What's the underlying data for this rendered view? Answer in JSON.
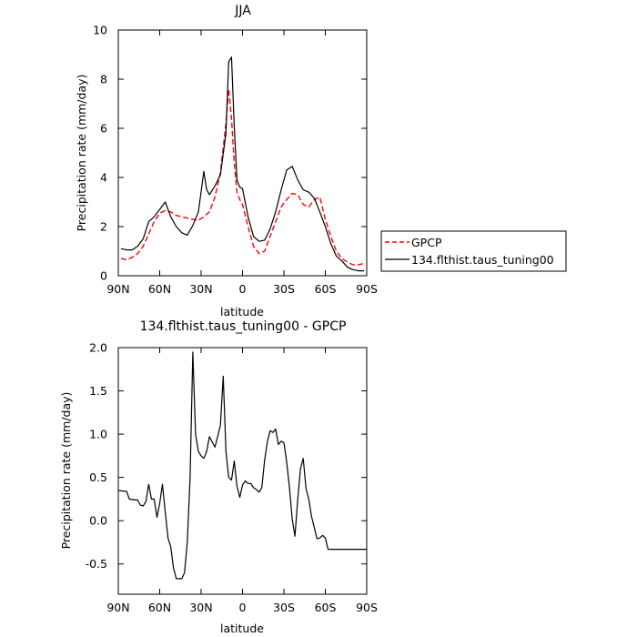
{
  "chart_data": [
    {
      "type": "line",
      "title": "JJA",
      "xlabel": "latitude",
      "ylabel": "Precipitation rate (mm/day)",
      "xlim": [
        -90,
        90
      ],
      "ylim": [
        0,
        10
      ],
      "xticks": [
        -90,
        -60,
        -30,
        0,
        30,
        60,
        90
      ],
      "xtick_labels": [
        "90N",
        "60N",
        "30N",
        "0",
        "30S",
        "60S",
        "90S"
      ],
      "yticks": [
        0,
        2,
        4,
        6,
        8,
        10
      ],
      "ytick_labels": [
        "0",
        "2",
        "4",
        "6",
        "8",
        "10"
      ],
      "legend_position": "right",
      "series": [
        {
          "name": "GPCP",
          "color": "#ff0000",
          "dash": "dashed",
          "x": [
            -88,
            -84,
            -80,
            -76,
            -72,
            -68,
            -64,
            -60,
            -56,
            -52,
            -48,
            -44,
            -40,
            -36,
            -32,
            -28,
            -24,
            -20,
            -16,
            -12,
            -10,
            -8,
            -6,
            -4,
            -2,
            0,
            4,
            8,
            12,
            16,
            20,
            24,
            28,
            32,
            36,
            40,
            44,
            48,
            52,
            56,
            60,
            64,
            68,
            72,
            76,
            80,
            84,
            88
          ],
          "y": [
            0.7,
            0.65,
            0.75,
            0.9,
            1.2,
            1.7,
            2.2,
            2.55,
            2.65,
            2.6,
            2.45,
            2.4,
            2.35,
            2.3,
            2.25,
            2.4,
            2.6,
            3.2,
            4.2,
            6.2,
            7.6,
            6.4,
            4.6,
            3.4,
            3.1,
            2.9,
            2.0,
            1.2,
            0.9,
            1.0,
            1.6,
            2.2,
            2.8,
            3.1,
            3.35,
            3.3,
            2.9,
            2.8,
            3.1,
            3.2,
            2.3,
            1.6,
            1.0,
            0.7,
            0.55,
            0.45,
            0.45,
            0.5
          ]
        },
        {
          "name": "134.flthist.taus_tuning00",
          "color": "#000000",
          "dash": "solid",
          "x": [
            -88,
            -84,
            -80,
            -76,
            -72,
            -68,
            -64,
            -60,
            -56,
            -52,
            -48,
            -44,
            -40,
            -36,
            -32,
            -28,
            -26,
            -24,
            -20,
            -16,
            -12,
            -10,
            -8,
            -6,
            -4,
            -2,
            0,
            4,
            8,
            12,
            16,
            20,
            24,
            28,
            32,
            36,
            40,
            44,
            48,
            52,
            56,
            60,
            64,
            68,
            72,
            76,
            80,
            84,
            88
          ],
          "y": [
            1.1,
            1.05,
            1.05,
            1.2,
            1.5,
            2.2,
            2.4,
            2.7,
            3.0,
            2.4,
            2.0,
            1.75,
            1.65,
            2.05,
            2.6,
            4.25,
            3.5,
            3.3,
            3.65,
            4.1,
            5.8,
            8.7,
            8.9,
            6.1,
            3.9,
            3.6,
            3.55,
            2.4,
            1.6,
            1.4,
            1.45,
            1.9,
            2.6,
            3.5,
            4.3,
            4.45,
            3.9,
            3.5,
            3.4,
            3.15,
            2.6,
            2.0,
            1.3,
            0.8,
            0.6,
            0.35,
            0.25,
            0.2,
            0.2
          ]
        }
      ]
    },
    {
      "type": "line",
      "title": "134.flthist.taus_tuning00 - GPCP",
      "xlabel": "latitude",
      "ylabel": "Precipitation rate (mm/day)",
      "xlim": [
        -90,
        90
      ],
      "ylim": [
        -0.85,
        2.0
      ],
      "xticks": [
        -90,
        -60,
        -30,
        0,
        30,
        60,
        90
      ],
      "xtick_labels": [
        "90N",
        "60N",
        "30N",
        "0",
        "30S",
        "60S",
        "90S"
      ],
      "yticks": [
        -0.5,
        0.0,
        0.5,
        1.0,
        1.5,
        2.0
      ],
      "ytick_labels": [
        "-0.5",
        "0.0",
        "0.5",
        "1.0",
        "1.5",
        "2.0"
      ],
      "series": [
        {
          "color": "#000000",
          "dash": "solid",
          "x": [
            -90,
            -86,
            -84,
            -82,
            -78,
            -76,
            -74,
            -72,
            -70,
            -68,
            -66,
            -64,
            -62,
            -60,
            -58,
            -56,
            -54,
            -52,
            -50,
            -48,
            -44,
            -42,
            -40,
            -38,
            -36,
            -34,
            -32,
            -30,
            -28,
            -26,
            -24,
            -20,
            -16,
            -14,
            -12,
            -10,
            -8,
            -6,
            -4,
            -2,
            0,
            2,
            4,
            6,
            8,
            10,
            12,
            14,
            16,
            18,
            20,
            22,
            24,
            26,
            28,
            30,
            32,
            34,
            36,
            38,
            40,
            42,
            44,
            46,
            48,
            50,
            52,
            54,
            56,
            58,
            60,
            62,
            64,
            66,
            68,
            70,
            72,
            74,
            76,
            78,
            80,
            82,
            84,
            86,
            88,
            90
          ],
          "y": [
            0.35,
            0.34,
            0.34,
            0.25,
            0.24,
            0.24,
            0.18,
            0.17,
            0.22,
            0.42,
            0.25,
            0.25,
            0.04,
            0.2,
            0.42,
            0.1,
            -0.2,
            -0.3,
            -0.55,
            -0.67,
            -0.67,
            -0.6,
            -0.25,
            0.5,
            1.95,
            1.0,
            0.8,
            0.75,
            0.72,
            0.8,
            0.97,
            0.85,
            1.1,
            1.67,
            0.8,
            0.5,
            0.47,
            0.69,
            0.4,
            0.27,
            0.41,
            0.46,
            0.43,
            0.43,
            0.38,
            0.36,
            0.33,
            0.38,
            0.7,
            0.91,
            1.04,
            1.02,
            1.06,
            0.88,
            0.92,
            0.9,
            0.68,
            0.38,
            0.02,
            -0.18,
            0.25,
            0.6,
            0.72,
            0.37,
            0.25,
            0.05,
            -0.08,
            -0.21,
            -0.2,
            -0.17,
            -0.2,
            -0.33,
            -0.33,
            -0.33,
            -0.33,
            -0.33,
            -0.33,
            -0.33,
            -0.33,
            -0.33,
            -0.33,
            -0.33,
            -0.33,
            -0.33,
            -0.33,
            -0.33
          ]
        }
      ]
    }
  ],
  "legend": {
    "items": [
      {
        "label": "GPCP",
        "color": "#ff0000",
        "dash": "dashed"
      },
      {
        "label": "134.flthist.taus_tuning00",
        "color": "#000000",
        "dash": "solid"
      }
    ]
  }
}
